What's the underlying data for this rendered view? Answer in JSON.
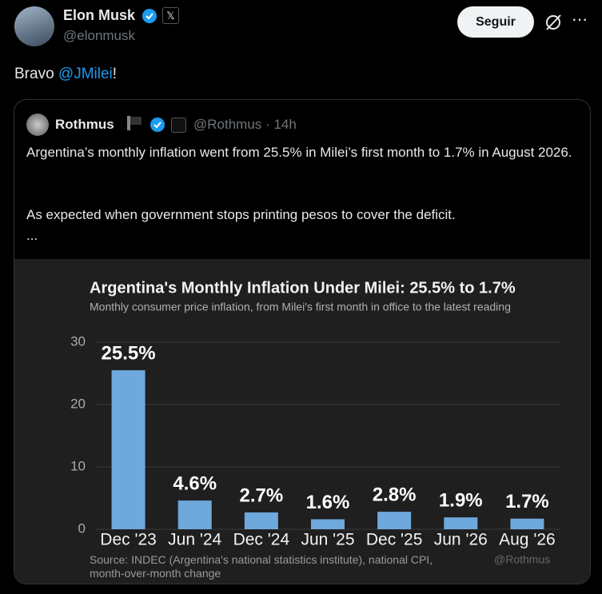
{
  "post": {
    "author_name": "Elon Musk",
    "author_handle": "@elonmusk",
    "follow_button": "Seguir",
    "text_before": "Bravo ",
    "mention": "@JMilei",
    "text_after": "!"
  },
  "quote": {
    "author_name": "Rothmus",
    "author_handle": "@Rothmus",
    "separator": "·",
    "time": "14h",
    "paragraph_1": "Argentina’s monthly inflation went from 25.5% in Milei’s first month to 1.7% in August 2026.",
    "paragraph_2": "As expected when government stops printing pesos to cover the deficit.",
    "more": "..."
  },
  "chart_data": {
    "type": "bar",
    "title": "Argentina's Monthly Inflation Under Milei: 25.5% to 1.7%",
    "subtitle": "Monthly consumer price inflation, from Milei's first month in office to the latest reading",
    "categories": [
      "Dec '23",
      "Jun '24",
      "Dec '24",
      "Jun '25",
      "Dec '25",
      "Jun '26",
      "Aug '26"
    ],
    "values": [
      25.5,
      4.6,
      2.7,
      1.6,
      2.8,
      1.9,
      1.7
    ],
    "value_labels": [
      "25.5%",
      "4.6%",
      "2.7%",
      "1.6%",
      "2.8%",
      "1.9%",
      "1.7%"
    ],
    "color": "#6fa8dc",
    "ylim": [
      0,
      30
    ],
    "yticks": [
      0,
      10,
      20,
      30
    ],
    "grid": true,
    "source": "Source: INDEC (Argentina's national statistics institute), national CPI, month-over-month change",
    "watermark": "@Rothmus"
  }
}
